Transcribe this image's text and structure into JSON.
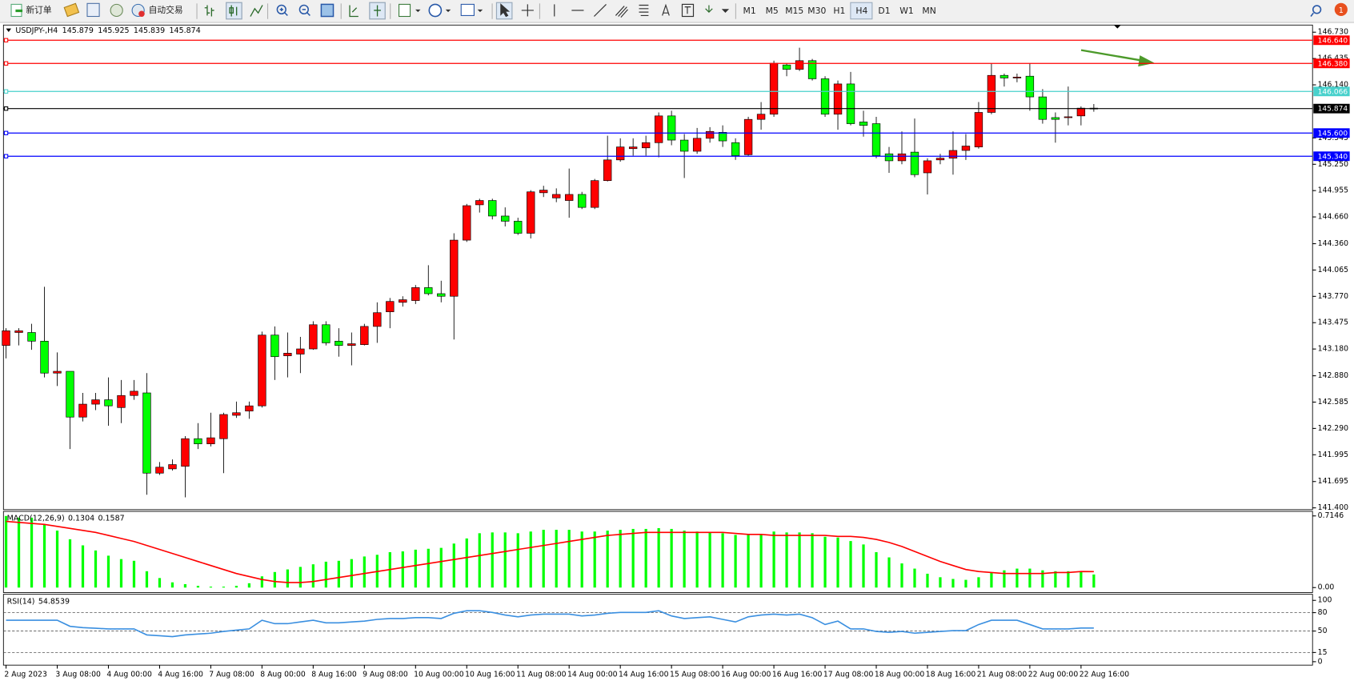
{
  "toolbar": {
    "new_order": "新订单",
    "auto_trading": "自动交易",
    "timeframes": [
      "M1",
      "M5",
      "M15",
      "M30",
      "H1",
      "H4",
      "D1",
      "W1",
      "MN"
    ],
    "notifications": 1
  },
  "chart_data": [
    {
      "type": "candlestick",
      "symbol": "USDJPY-,H4",
      "up_color": "#ff0000",
      "down_color": "#00ff00",
      "categories": [
        "2 Aug 2023",
        null,
        null,
        null,
        "3 Aug 08:00",
        null,
        null,
        null,
        "4 Aug 00:00",
        null,
        null,
        null,
        "4 Aug 16:00",
        null,
        null,
        null,
        "7 Aug 08:00",
        null,
        null,
        null,
        "8 Aug 00:00",
        null,
        null,
        null,
        "8 Aug 16:00",
        null,
        null,
        null,
        "9 Aug 08:00",
        null,
        null,
        null,
        "10 Aug 00:00",
        null,
        null,
        null,
        "10 Aug 16:00",
        null,
        null,
        null,
        "11 Aug 08:00",
        null,
        null,
        null,
        "14 Aug 00:00",
        null,
        null,
        null,
        "14 Aug 16:00",
        null,
        null,
        null,
        "15 Aug 08:00",
        null,
        null,
        null,
        "16 Aug 00:00",
        null,
        null,
        null,
        "16 Aug 16:00",
        null,
        null,
        null,
        "17 Aug 08:00",
        null,
        null,
        null,
        "18 Aug 00:00",
        null,
        null,
        null,
        "18 Aug 16:00",
        null,
        null,
        null,
        "21 Aug 08:00",
        null,
        null,
        null,
        "22 Aug 00:00",
        null,
        null,
        null,
        "22 Aug 16:00",
        null
      ],
      "open": [
        143.22,
        143.365,
        143.365,
        143.268,
        142.91,
        142.93,
        142.417,
        142.562,
        142.611,
        142.524,
        142.659,
        142.688,
        141.789,
        141.837,
        141.866,
        142.175,
        142.117,
        142.175,
        142.437,
        142.485,
        142.543,
        143.336,
        143.104,
        143.123,
        143.181,
        143.452,
        143.268,
        143.22,
        143.229,
        143.433,
        143.597,
        143.703,
        143.723,
        143.868,
        143.8,
        143.771,
        144.4,
        144.796,
        144.844,
        144.67,
        144.612,
        144.477,
        144.931,
        144.873,
        144.844,
        144.912,
        144.767,
        145.067,
        145.299,
        145.425,
        145.434,
        145.492,
        145.792,
        145.521,
        145.396,
        145.541,
        145.608,
        145.492,
        145.357,
        145.753,
        145.811,
        146.363,
        146.314,
        146.411,
        146.208,
        145.811,
        146.15,
        145.724,
        145.705,
        145.367,
        145.289,
        145.386,
        145.154,
        145.299,
        145.318,
        145.405,
        145.444,
        145.831,
        146.246,
        146.217,
        146.237,
        146.005,
        145.773,
        145.773,
        145.792,
        145.879
      ],
      "high": [
        143.413,
        143.413,
        143.462,
        143.877,
        143.142,
        142.93,
        142.688,
        142.688,
        142.862,
        142.833,
        142.833,
        142.91,
        141.914,
        141.943,
        142.204,
        142.349,
        142.466,
        142.466,
        142.591,
        142.591,
        143.375,
        143.433,
        143.365,
        143.316,
        143.491,
        143.491,
        143.413,
        143.365,
        143.462,
        143.703,
        143.752,
        143.771,
        143.897,
        144.119,
        143.945,
        144.477,
        144.806,
        144.864,
        144.864,
        144.767,
        144.651,
        144.96,
        145.009,
        144.98,
        145.202,
        144.941,
        145.086,
        145.57,
        145.541,
        145.541,
        145.57,
        145.831,
        145.85,
        145.589,
        145.657,
        145.666,
        145.686,
        145.541,
        145.782,
        145.947,
        146.411,
        146.382,
        146.556,
        146.43,
        146.237,
        146.188,
        146.285,
        145.85,
        145.782,
        145.444,
        145.618,
        145.763,
        145.318,
        145.367,
        145.618,
        145.589,
        145.947,
        146.382,
        146.266,
        146.266,
        146.382,
        146.092,
        145.831,
        146.121,
        145.898,
        145.925
      ],
      "low": [
        143.075,
        143.22,
        143.171,
        142.862,
        142.765,
        142.059,
        142.369,
        142.495,
        142.32,
        142.349,
        142.611,
        141.547,
        141.769,
        141.818,
        141.518,
        142.059,
        142.088,
        141.789,
        142.408,
        142.398,
        142.524,
        142.833,
        142.862,
        142.91,
        143.171,
        143.22,
        143.094,
        142.997,
        143.22,
        143.249,
        143.413,
        143.655,
        143.684,
        143.781,
        143.703,
        143.287,
        144.38,
        144.709,
        144.632,
        144.554,
        144.458,
        144.419,
        144.883,
        144.825,
        144.651,
        144.748,
        144.748,
        145.057,
        145.279,
        145.347,
        145.347,
        145.328,
        145.463,
        145.096,
        145.367,
        145.492,
        145.444,
        145.299,
        145.347,
        145.637,
        145.782,
        146.237,
        146.295,
        146.188,
        145.782,
        145.637,
        145.686,
        145.56,
        145.318,
        145.154,
        145.25,
        145.105,
        144.912,
        145.25,
        145.134,
        145.299,
        145.425,
        145.811,
        146.121,
        146.169,
        145.85,
        145.705,
        145.492,
        145.686,
        145.686,
        145.839
      ],
      "close": [
        143.384,
        143.384,
        143.268,
        142.91,
        142.93,
        142.417,
        142.562,
        142.611,
        142.543,
        142.659,
        142.707,
        141.789,
        141.856,
        141.885,
        142.175,
        142.117,
        142.185,
        142.446,
        142.466,
        142.543,
        143.336,
        143.094,
        143.133,
        143.181,
        143.452,
        143.249,
        143.22,
        143.239,
        143.433,
        143.587,
        143.713,
        143.732,
        143.868,
        143.8,
        143.771,
        144.4,
        144.786,
        144.844,
        144.67,
        144.612,
        144.477,
        144.941,
        144.96,
        144.912,
        144.912,
        144.767,
        145.067,
        145.299,
        145.444,
        145.444,
        145.492,
        145.792,
        145.521,
        145.396,
        145.541,
        145.618,
        145.512,
        145.347,
        145.753,
        145.811,
        146.382,
        146.314,
        146.411,
        146.208,
        145.811,
        146.15,
        145.705,
        145.686,
        145.347,
        145.289,
        145.367,
        145.134,
        145.289,
        145.318,
        145.405,
        145.454,
        145.831,
        146.246,
        146.217,
        146.227,
        146.005,
        145.753,
        145.753,
        145.782,
        145.879,
        145.874
      ],
      "ylim": [
        141.38,
        146.81
      ],
      "yticks": [
        {
          "value": 146.73,
          "label": "146.730"
        },
        146.435,
        {
          "value": 146.14,
          "label": "146.140"
        },
        145.545,
        {
          "value": 145.25,
          "label": "145.250"
        },
        144.955,
        {
          "value": 144.66,
          "label": "144.660"
        },
        {
          "value": 144.36,
          "label": "144.360"
        },
        144.065,
        {
          "value": 143.77,
          "label": "143.770"
        },
        143.475,
        {
          "value": 143.18,
          "label": "143.180"
        },
        {
          "value": 142.88,
          "label": "142.880"
        },
        142.585,
        {
          "value": 142.29,
          "label": "142.290"
        },
        141.995,
        141.695,
        {
          "value": 141.4,
          "label": "141.400"
        }
      ],
      "levels": [
        {
          "value": 146.64,
          "label": "146.640",
          "color": "#ff0000"
        },
        {
          "value": 146.38,
          "label": "146.380",
          "color": "#ff0000"
        },
        {
          "value": 146.066,
          "label": "146.066",
          "color": "#48d1cc"
        },
        {
          "value": 145.874,
          "label": "145.874",
          "color": "#000000"
        },
        {
          "value": 145.6,
          "label": "145.600",
          "color": "#0000ff"
        },
        {
          "value": 145.34,
          "label": "145.340",
          "color": "#0000ff"
        }
      ]
    },
    {
      "type": "macd",
      "name": "MACD(12,26,9)",
      "series": [
        {
          "style": "bar",
          "color": "#00ff00",
          "values": [
            0.714,
            0.697,
            0.697,
            0.628,
            0.568,
            0.482,
            0.421,
            0.37,
            0.318,
            0.284,
            0.267,
            0.163,
            0.095,
            0.052,
            0.034,
            0.017,
            0.009,
            0.009,
            0.017,
            0.043,
            0.112,
            0.155,
            0.181,
            0.206,
            0.232,
            0.258,
            0.267,
            0.284,
            0.31,
            0.327,
            0.353,
            0.361,
            0.378,
            0.387,
            0.396,
            0.439,
            0.49,
            0.542,
            0.55,
            0.55,
            0.542,
            0.559,
            0.576,
            0.576,
            0.576,
            0.559,
            0.559,
            0.568,
            0.576,
            0.585,
            0.585,
            0.593,
            0.585,
            0.568,
            0.559,
            0.55,
            0.542,
            0.525,
            0.525,
            0.525,
            0.559,
            0.55,
            0.55,
            0.542,
            0.507,
            0.499,
            0.464,
            0.43,
            0.353,
            0.301,
            0.241,
            0.189,
            0.138,
            0.103,
            0.086,
            0.077,
            0.103,
            0.146,
            0.172,
            0.189,
            0.189,
            0.172,
            0.163,
            0.163,
            0.155,
            0.1304
          ]
        },
        {
          "style": "line",
          "color": "#ff0000",
          "values": [
            0.66,
            0.65,
            0.64,
            0.63,
            0.61,
            0.59,
            0.57,
            0.55,
            0.52,
            0.49,
            0.46,
            0.42,
            0.38,
            0.34,
            0.3,
            0.26,
            0.22,
            0.18,
            0.14,
            0.11,
            0.08,
            0.06,
            0.05,
            0.05,
            0.06,
            0.08,
            0.1,
            0.12,
            0.14,
            0.16,
            0.18,
            0.2,
            0.22,
            0.24,
            0.26,
            0.28,
            0.3,
            0.32,
            0.34,
            0.36,
            0.38,
            0.4,
            0.42,
            0.44,
            0.46,
            0.48,
            0.5,
            0.52,
            0.53,
            0.54,
            0.55,
            0.55,
            0.55,
            0.55,
            0.55,
            0.55,
            0.55,
            0.54,
            0.53,
            0.53,
            0.52,
            0.52,
            0.52,
            0.52,
            0.52,
            0.51,
            0.51,
            0.5,
            0.48,
            0.45,
            0.41,
            0.36,
            0.31,
            0.26,
            0.22,
            0.18,
            0.16,
            0.15,
            0.14,
            0.14,
            0.14,
            0.14,
            0.15,
            0.15,
            0.16,
            0.1587
          ]
        }
      ],
      "ylim": [
        -0.05,
        0.76
      ],
      "yticks": [
        0.7146,
        {
          "value": 0,
          "label": "0.00"
        }
      ]
    },
    {
      "type": "line",
      "name": "RSI(14)",
      "color": "#3a8fe0",
      "values": [
        67.6,
        67.6,
        67.6,
        67.6,
        67.6,
        57.7,
        55.6,
        54.5,
        53.5,
        53.5,
        53.5,
        43.7,
        42.3,
        40.8,
        43.7,
        45.1,
        46.5,
        49.3,
        51.4,
        53.5,
        67.6,
        62.0,
        62.0,
        64.8,
        67.6,
        63.4,
        63.4,
        64.8,
        66.2,
        69.0,
        70.4,
        70.4,
        71.8,
        71.8,
        70.4,
        78.9,
        83.1,
        83.1,
        80.3,
        76.1,
        73.2,
        76.1,
        77.5,
        77.5,
        77.5,
        74.6,
        76.1,
        78.9,
        80.3,
        80.3,
        80.3,
        83.1,
        74.6,
        70.4,
        71.8,
        73.2,
        69.0,
        64.8,
        73.2,
        76.1,
        77.5,
        76.1,
        77.5,
        71.8,
        60.6,
        66.2,
        53.5,
        53.5,
        49.3,
        47.9,
        49.3,
        46.5,
        47.9,
        49.3,
        50.7,
        50.7,
        60.6,
        67.6,
        67.6,
        67.6,
        60.6,
        53.5,
        53.5,
        53.5,
        54.9,
        54.8539
      ],
      "ylim": [
        -5.6,
        109.9
      ],
      "yticks": [
        100,
        80,
        50,
        15,
        0
      ],
      "levels": [
        80,
        50,
        15
      ]
    }
  ]
}
